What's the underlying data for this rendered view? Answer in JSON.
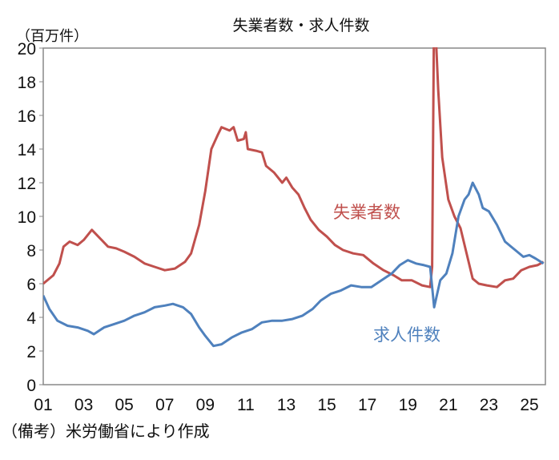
{
  "chart_data": {
    "type": "line",
    "title": "失業者数・求人件数",
    "ylabel": "（百万件）",
    "xlabel": "",
    "note": "（備考）米労働省により作成",
    "ylim": [
      0,
      20
    ],
    "xlim": [
      2001,
      2025.8
    ],
    "yticks": [
      0,
      2,
      4,
      6,
      8,
      10,
      12,
      14,
      16,
      18,
      20
    ],
    "xticks": [
      {
        "value": 2001,
        "label": "01"
      },
      {
        "value": 2003,
        "label": "03"
      },
      {
        "value": 2005,
        "label": "05"
      },
      {
        "value": 2007,
        "label": "07"
      },
      {
        "value": 2009,
        "label": "09"
      },
      {
        "value": 2011,
        "label": "11"
      },
      {
        "value": 2013,
        "label": "13"
      },
      {
        "value": 2015,
        "label": "15"
      },
      {
        "value": 2017,
        "label": "17"
      },
      {
        "value": 2019,
        "label": "19"
      },
      {
        "value": 2021,
        "label": "21"
      },
      {
        "value": 2023,
        "label": "23"
      },
      {
        "value": 2025,
        "label": "25"
      }
    ],
    "grid": false,
    "series": [
      {
        "name": "失業者数",
        "color": "#c0504d",
        "x": [
          2001.0,
          2001.5,
          2001.8,
          2002.0,
          2002.3,
          2002.7,
          2003.0,
          2003.4,
          2003.8,
          2004.2,
          2004.6,
          2005.0,
          2005.5,
          2006.0,
          2006.5,
          2007.0,
          2007.5,
          2008.0,
          2008.3,
          2008.7,
          2009.0,
          2009.3,
          2009.6,
          2009.8,
          2010.2,
          2010.4,
          2010.6,
          2010.9,
          2011.0,
          2011.1,
          2011.5,
          2011.8,
          2012.0,
          2012.4,
          2012.8,
          2013.0,
          2013.3,
          2013.6,
          2013.9,
          2014.2,
          2014.6,
          2015.0,
          2015.4,
          2015.8,
          2016.3,
          2016.8,
          2017.3,
          2017.8,
          2018.3,
          2018.7,
          2019.2,
          2019.7,
          2020.1,
          2020.2,
          2020.3,
          2020.5,
          2020.7,
          2021.0,
          2021.3,
          2021.6,
          2021.9,
          2022.2,
          2022.5,
          2022.9,
          2023.4,
          2023.8,
          2024.2,
          2024.6,
          2025.0,
          2025.4,
          2025.7
        ],
        "values": [
          6.0,
          6.5,
          7.2,
          8.2,
          8.5,
          8.3,
          8.6,
          9.2,
          8.7,
          8.2,
          8.1,
          7.9,
          7.6,
          7.2,
          7.0,
          6.8,
          6.9,
          7.3,
          7.8,
          9.5,
          11.5,
          14.0,
          14.8,
          15.3,
          15.1,
          15.3,
          14.5,
          14.6,
          15.0,
          14.0,
          13.9,
          13.8,
          13.0,
          12.6,
          12.0,
          12.3,
          11.7,
          11.3,
          10.5,
          9.8,
          9.2,
          8.8,
          8.3,
          8.0,
          7.8,
          7.7,
          7.2,
          6.8,
          6.5,
          6.2,
          6.2,
          5.9,
          5.8,
          7.0,
          23.0,
          17.5,
          13.5,
          11.0,
          10.0,
          9.3,
          7.8,
          6.3,
          6.0,
          5.9,
          5.8,
          6.2,
          6.3,
          6.8,
          7.0,
          7.1,
          7.3
        ]
      },
      {
        "name": "求人件数",
        "color": "#4f81bd",
        "x": [
          2001.0,
          2001.3,
          2001.7,
          2002.2,
          2002.7,
          2003.2,
          2003.5,
          2004.0,
          2004.5,
          2005.0,
          2005.5,
          2006.0,
          2006.5,
          2007.0,
          2007.4,
          2007.9,
          2008.3,
          2008.7,
          2009.0,
          2009.4,
          2009.8,
          2010.3,
          2010.8,
          2011.3,
          2011.8,
          2012.3,
          2012.8,
          2013.3,
          2013.8,
          2014.3,
          2014.7,
          2015.2,
          2015.7,
          2016.2,
          2016.7,
          2017.2,
          2017.7,
          2018.2,
          2018.6,
          2019.0,
          2019.4,
          2019.8,
          2020.1,
          2020.3,
          2020.6,
          2020.9,
          2021.2,
          2021.5,
          2021.8,
          2022.0,
          2022.2,
          2022.5,
          2022.7,
          2023.0,
          2023.4,
          2023.8,
          2024.3,
          2024.7,
          2025.0,
          2025.3,
          2025.7
        ],
        "values": [
          5.3,
          4.5,
          3.8,
          3.5,
          3.4,
          3.2,
          3.0,
          3.4,
          3.6,
          3.8,
          4.1,
          4.3,
          4.6,
          4.7,
          4.8,
          4.6,
          4.2,
          3.4,
          2.9,
          2.3,
          2.4,
          2.8,
          3.1,
          3.3,
          3.7,
          3.8,
          3.8,
          3.9,
          4.1,
          4.5,
          5.0,
          5.4,
          5.6,
          5.9,
          5.8,
          5.8,
          6.2,
          6.6,
          7.1,
          7.4,
          7.2,
          7.1,
          7.0,
          4.6,
          6.2,
          6.6,
          7.8,
          10.0,
          11.0,
          11.3,
          12.0,
          11.3,
          10.5,
          10.3,
          9.5,
          8.5,
          8.0,
          7.6,
          7.7,
          7.5,
          7.2
        ]
      }
    ],
    "annotations": [
      {
        "text": "失業者数",
        "series": "失業者数"
      },
      {
        "text": "求人件数",
        "series": "求人件数"
      }
    ]
  }
}
